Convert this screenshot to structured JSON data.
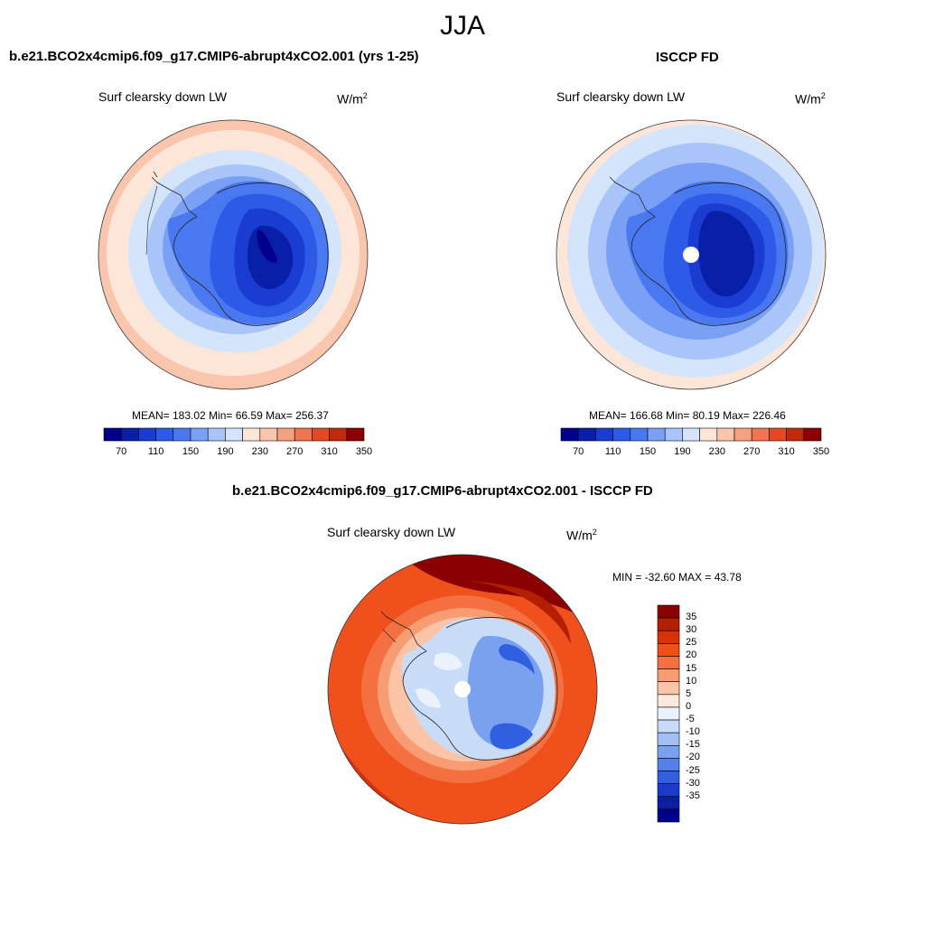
{
  "figure": {
    "season": "JJA",
    "variable": "Surf clearsky down LW",
    "units_base": "W/m",
    "units_exp": "2"
  },
  "panels": {
    "model": {
      "title": "b.e21.BCO2x4cmip6.f09_g17.CMIP6-abrupt4xCO2.001 (yrs 1-25)",
      "stats": "MEAN= 183.02  Min=  66.59  Max= 256.37",
      "colorbar_ticks": [
        "70",
        "110",
        "150",
        "190",
        "230",
        "270",
        "310",
        "350"
      ]
    },
    "obs": {
      "title": "ISCCP FD",
      "stats": "MEAN= 166.68  Min=  80.19  Max= 226.46",
      "colorbar_ticks": [
        "70",
        "110",
        "150",
        "190",
        "230",
        "270",
        "310",
        "350"
      ]
    },
    "diff": {
      "title": "b.e21.BCO2x4cmip6.f09_g17.CMIP6-abrupt4xCO2.001 - ISCCP FD",
      "stats": "MIN = -32.60 MAX =  43.78",
      "colorbar_labels": [
        "35",
        "30",
        "25",
        "20",
        "15",
        "10",
        "5",
        "0",
        "-5",
        "-10",
        "-15",
        "-20",
        "-25",
        "-30",
        "-35"
      ]
    }
  },
  "colors": {
    "abs_scale": [
      "#00008a",
      "#0a1fa8",
      "#1a3cd0",
      "#2e5ae8",
      "#4a78f0",
      "#7aa0f5",
      "#a8c4f8",
      "#d4e4fb",
      "#fde6d8",
      "#f9c6ad",
      "#f5a07e",
      "#f07550",
      "#e24a25",
      "#c22a0e",
      "#8b0000"
    ],
    "diff_scale": [
      "#8b0000",
      "#b22000",
      "#d6320c",
      "#f0501c",
      "#f57040",
      "#f89c74",
      "#fbc4a6",
      "#fde8dc",
      "#eaf2fc",
      "#c8dcf8",
      "#a2c0f4",
      "#7aa0f0",
      "#5580ec",
      "#3060e0",
      "#1a3cc8",
      "#0a20a0",
      "#00008a"
    ]
  }
}
